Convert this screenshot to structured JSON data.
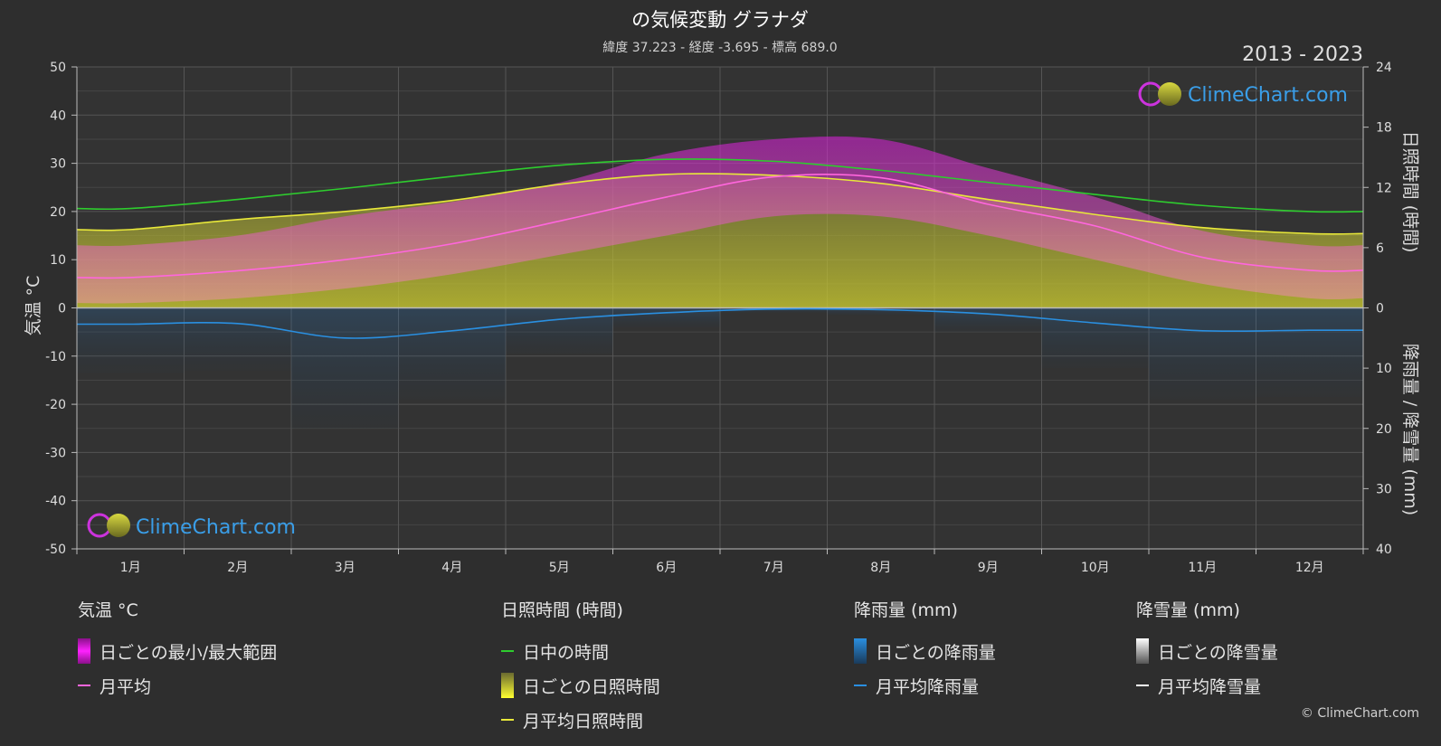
{
  "chart_data": {
    "type": "area",
    "title": "の気候変動 グラナダ",
    "subtitle": "緯度 37.223 - 経度 -3.695 - 標高 689.0",
    "period": "2013 - 2023",
    "watermark": "ClimeChart.com",
    "copyright": "© ClimeChart.com",
    "ylabel_left": "気温 °C",
    "ylabel_right_top": "日照時間 (時間)",
    "ylabel_right_bottom": "降雨量 / 降雪量 (mm)",
    "ylim_left": [
      -50,
      50
    ],
    "left_ticks": [
      50,
      40,
      30,
      20,
      10,
      0,
      -10,
      -20,
      -30,
      -40,
      -50
    ],
    "right_top_ticks": [
      24,
      18,
      12,
      6,
      0
    ],
    "right_bottom_ticks": [
      10,
      20,
      30,
      40
    ],
    "categories": [
      "1月",
      "2月",
      "3月",
      "4月",
      "5月",
      "6月",
      "7月",
      "8月",
      "9月",
      "10月",
      "11月",
      "12月"
    ],
    "series": [
      {
        "name": "日中の時間",
        "unit": "hours",
        "color": "#2ecc2e",
        "values": [
          9.9,
          10.8,
          11.9,
          13.1,
          14.2,
          14.8,
          14.6,
          13.7,
          12.5,
          11.3,
          10.2,
          9.6
        ]
      },
      {
        "name": "月平均日照時間",
        "unit": "hours",
        "color": "#e8e83a",
        "values": [
          7.8,
          8.8,
          9.6,
          10.7,
          12.3,
          13.3,
          13.2,
          12.4,
          10.8,
          9.3,
          8.0,
          7.4
        ]
      },
      {
        "name": "月平均",
        "unit": "°C",
        "color": "#ff66dd",
        "values": [
          6.3,
          7.7,
          10.0,
          13.3,
          18.0,
          23.0,
          27.2,
          27.0,
          21.5,
          17.0,
          10.5,
          7.8
        ]
      },
      {
        "name": "月平均降雨量",
        "unit": "mm",
        "color": "#2a8fe0",
        "values": [
          2.7,
          2.6,
          5.0,
          3.8,
          1.9,
          0.8,
          0.2,
          0.3,
          1.0,
          2.5,
          3.8,
          3.7
        ]
      },
      {
        "name": "月平均降雪量",
        "unit": "mm",
        "color": "#ffffff",
        "values": [
          0,
          0,
          0,
          0,
          0,
          0,
          0,
          0,
          0,
          0,
          0,
          0
        ]
      }
    ],
    "daily_range": {
      "name": "日ごとの最小/最大範囲",
      "min": [
        1,
        2,
        4,
        7,
        11,
        15,
        19,
        19,
        15,
        10,
        5,
        2
      ],
      "max": [
        13,
        15,
        19,
        22,
        26,
        32,
        35,
        35,
        29,
        23,
        16,
        13
      ]
    }
  },
  "legend": {
    "temp": {
      "header": "気温 °C",
      "items": [
        "日ごとの最小/最大範囲",
        "月平均"
      ]
    },
    "sun": {
      "header": "日照時間 (時間)",
      "items": [
        "日中の時間",
        "日ごとの日照時間",
        "月平均日照時間"
      ]
    },
    "rain": {
      "header": "降雨量 (mm)",
      "items": [
        "日ごとの降雨量",
        "月平均降雨量"
      ]
    },
    "snow": {
      "header": "降雪量 (mm)",
      "items": [
        "日ごとの降雪量",
        "月平均降雪量"
      ]
    }
  },
  "colors": {
    "background": "#2e2e2e",
    "temp_range": "#e020e0",
    "temp_avg": "#ff66dd",
    "daylight": "#2ecc2e",
    "sunshine": "#e8e83a",
    "rain": "#2a8fe0",
    "snow": "#ffffff"
  }
}
